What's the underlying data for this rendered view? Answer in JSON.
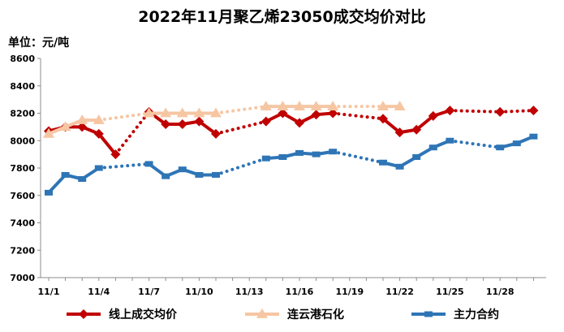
{
  "chart_data": {
    "type": "line",
    "title": "2022年11月聚乙烯23050成交均价对比",
    "ylabel": "单位：元/吨",
    "ylim": [
      7000,
      8600
    ],
    "yticks": [
      7000,
      7200,
      7400,
      7600,
      7800,
      8000,
      8200,
      8400,
      8600
    ],
    "xticks": [
      "11/1",
      "11/4",
      "11/7",
      "11/10",
      "11/13",
      "11/16",
      "11/19",
      "11/22",
      "11/25",
      "11/28"
    ],
    "x_range": [
      1,
      30
    ],
    "grid": false,
    "legend_position": "bottom",
    "series": [
      {
        "name": "线上成交均价",
        "color": "#c00000",
        "marker": "diamond",
        "points": [
          [
            1,
            8070
          ],
          [
            2,
            8100
          ],
          [
            3,
            8100
          ],
          [
            4,
            8050
          ],
          [
            5,
            7900
          ],
          [
            7,
            8210
          ],
          [
            8,
            8120
          ],
          [
            9,
            8120
          ],
          [
            10,
            8140
          ],
          [
            11,
            8050
          ],
          [
            14,
            8140
          ],
          [
            15,
            8200
          ],
          [
            16,
            8130
          ],
          [
            17,
            8190
          ],
          [
            18,
            8200
          ],
          [
            21,
            8160
          ],
          [
            22,
            8060
          ],
          [
            23,
            8080
          ],
          [
            24,
            8180
          ],
          [
            25,
            8220
          ],
          [
            28,
            8210
          ],
          [
            30,
            8220
          ]
        ]
      },
      {
        "name": "连云港石化",
        "color": "#f6c6a3",
        "marker": "triangle",
        "points": [
          [
            1,
            8050
          ],
          [
            2,
            8100
          ],
          [
            3,
            8150
          ],
          [
            4,
            8150
          ],
          [
            7,
            8200
          ],
          [
            8,
            8200
          ],
          [
            9,
            8200
          ],
          [
            10,
            8200
          ],
          [
            11,
            8200
          ],
          [
            14,
            8250
          ],
          [
            15,
            8250
          ],
          [
            16,
            8250
          ],
          [
            17,
            8250
          ],
          [
            18,
            8250
          ],
          [
            21,
            8250
          ],
          [
            22,
            8250
          ]
        ]
      },
      {
        "name": "主力合约",
        "color": "#2e75b6",
        "marker": "square",
        "points": [
          [
            1,
            7620
          ],
          [
            2,
            7750
          ],
          [
            3,
            7720
          ],
          [
            4,
            7800
          ],
          [
            7,
            7830
          ],
          [
            8,
            7740
          ],
          [
            9,
            7790
          ],
          [
            10,
            7750
          ],
          [
            11,
            7750
          ],
          [
            14,
            7870
          ],
          [
            15,
            7880
          ],
          [
            16,
            7910
          ],
          [
            17,
            7900
          ],
          [
            18,
            7920
          ],
          [
            21,
            7840
          ],
          [
            22,
            7810
          ],
          [
            23,
            7880
          ],
          [
            24,
            7950
          ],
          [
            25,
            8000
          ],
          [
            28,
            7950
          ],
          [
            29,
            7980
          ],
          [
            30,
            8030
          ]
        ]
      }
    ]
  }
}
